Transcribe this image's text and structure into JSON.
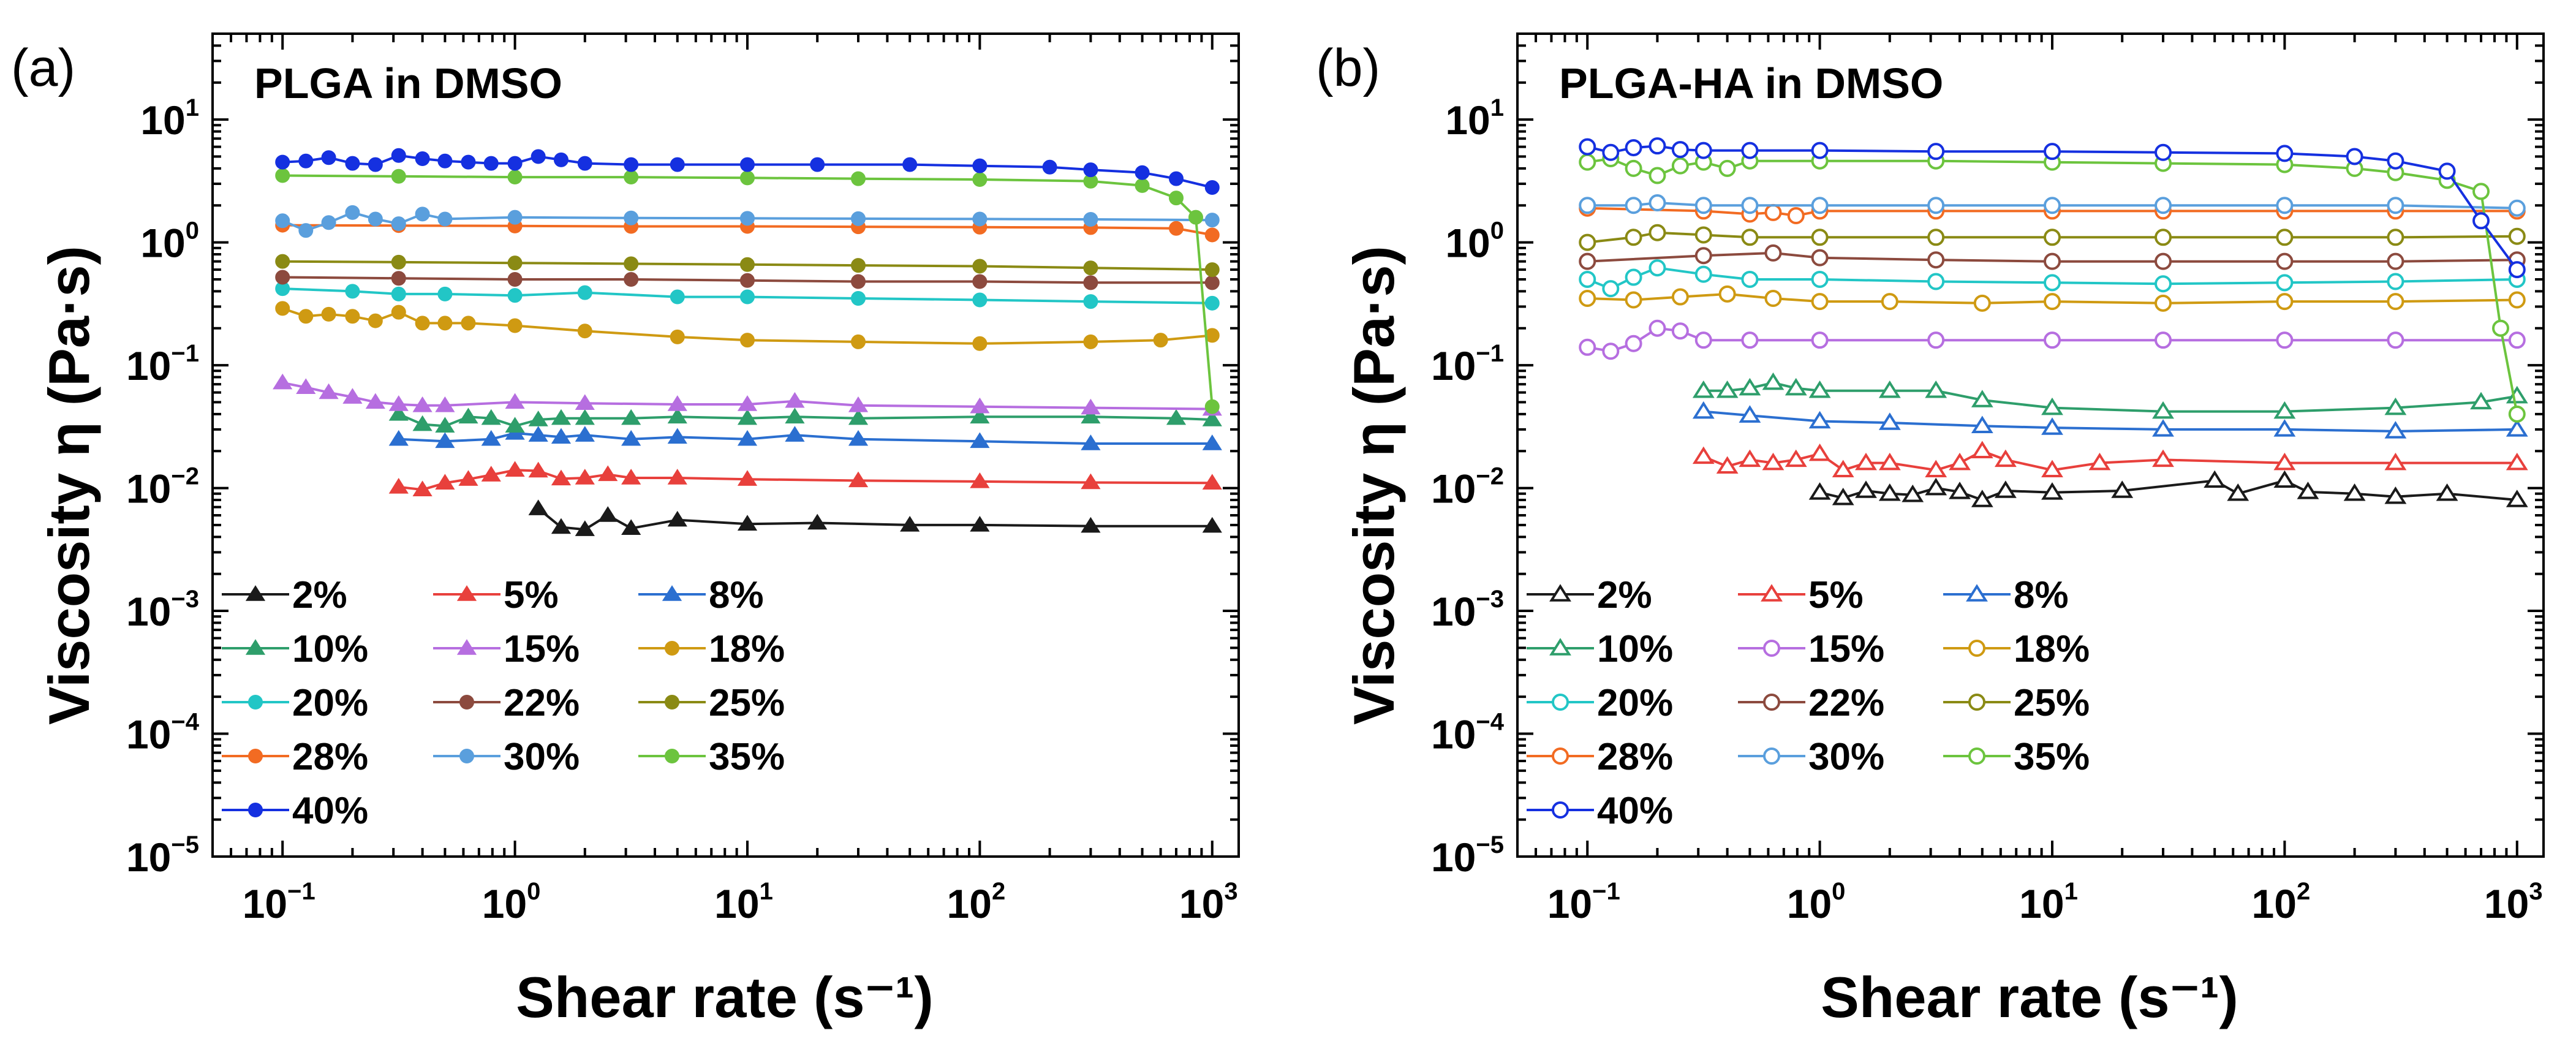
{
  "chart_data": [
    {
      "type": "line",
      "panel_letter": "(a)",
      "title": "PLGA in DMSO",
      "xlabel": "Shear rate (s⁻¹)",
      "ylabel": "Viscosity η (Pa·s)",
      "x_scale": "log",
      "y_scale": "log",
      "xlim": [
        0.05,
        1300
      ],
      "ylim": [
        1e-05,
        50
      ],
      "x_tick_exponents": [
        -1,
        0,
        1,
        2,
        3
      ],
      "y_tick_exponents": [
        -5,
        -4,
        -3,
        -2,
        -1,
        0,
        1
      ],
      "marker_style": "filled",
      "legend_position": "bottom-left",
      "series": [
        {
          "name": "2%",
          "color": "#1a1a1a",
          "marker": "triangle",
          "x": [
            1.26,
            1.58,
            2.0,
            2.51,
            3.16,
            5.0,
            10,
            20,
            50,
            100,
            300,
            1000
          ],
          "y": [
            0.0068,
            0.0048,
            0.0046,
            0.006,
            0.0047,
            0.0055,
            0.0051,
            0.0052,
            0.005,
            0.005,
            0.0049,
            0.0049
          ]
        },
        {
          "name": "5%",
          "color": "#e8403c",
          "marker": "triangle",
          "x": [
            0.316,
            0.4,
            0.5,
            0.63,
            0.79,
            1.0,
            1.26,
            1.58,
            2.0,
            2.51,
            3.16,
            5,
            10,
            30,
            100,
            300,
            1000
          ],
          "y": [
            0.0102,
            0.0097,
            0.011,
            0.0118,
            0.0128,
            0.014,
            0.0138,
            0.0119,
            0.0121,
            0.0129,
            0.0121,
            0.0121,
            0.0118,
            0.0115,
            0.0113,
            0.0111,
            0.011
          ]
        },
        {
          "name": "8%",
          "color": "#2b6fd0",
          "marker": "triangle",
          "x": [
            0.316,
            0.5,
            0.79,
            1.0,
            1.26,
            1.58,
            2.0,
            3.16,
            5,
            10,
            16,
            30,
            100,
            300,
            1000
          ],
          "y": [
            0.025,
            0.024,
            0.025,
            0.028,
            0.027,
            0.026,
            0.027,
            0.025,
            0.026,
            0.025,
            0.027,
            0.025,
            0.024,
            0.023,
            0.023
          ]
        },
        {
          "name": "10%",
          "color": "#2e9e6b",
          "marker": "triangle",
          "x": [
            0.316,
            0.4,
            0.5,
            0.63,
            0.79,
            1.0,
            1.26,
            1.58,
            2.0,
            3.16,
            5,
            10,
            16,
            30,
            100,
            300,
            700,
            1000
          ],
          "y": [
            0.04,
            0.033,
            0.032,
            0.038,
            0.037,
            0.032,
            0.036,
            0.037,
            0.037,
            0.037,
            0.038,
            0.037,
            0.038,
            0.037,
            0.038,
            0.038,
            0.037,
            0.036
          ]
        },
        {
          "name": "15%",
          "color": "#b66ee0",
          "marker": "triangle",
          "x": [
            0.1,
            0.126,
            0.158,
            0.2,
            0.251,
            0.316,
            0.4,
            0.5,
            1.0,
            2.0,
            5,
            10,
            16,
            30,
            100,
            300,
            1000
          ],
          "y": [
            0.072,
            0.066,
            0.06,
            0.055,
            0.05,
            0.048,
            0.047,
            0.047,
            0.05,
            0.049,
            0.048,
            0.048,
            0.051,
            0.047,
            0.046,
            0.045,
            0.044
          ]
        },
        {
          "name": "18%",
          "color": "#cf9a12",
          "marker": "circle",
          "x": [
            0.1,
            0.126,
            0.158,
            0.2,
            0.251,
            0.316,
            0.4,
            0.5,
            0.63,
            1.0,
            2.0,
            5,
            10,
            30,
            100,
            300,
            600,
            1000
          ],
          "y": [
            0.29,
            0.25,
            0.26,
            0.25,
            0.23,
            0.27,
            0.22,
            0.22,
            0.22,
            0.21,
            0.19,
            0.17,
            0.16,
            0.155,
            0.15,
            0.155,
            0.16,
            0.175
          ]
        },
        {
          "name": "20%",
          "color": "#22c6c6",
          "marker": "circle",
          "x": [
            0.1,
            0.2,
            0.316,
            0.5,
            1.0,
            2.0,
            5,
            10,
            30,
            100,
            300,
            1000
          ],
          "y": [
            0.42,
            0.4,
            0.38,
            0.38,
            0.37,
            0.39,
            0.36,
            0.36,
            0.35,
            0.34,
            0.33,
            0.32
          ]
        },
        {
          "name": "22%",
          "color": "#8c4a3e",
          "marker": "circle",
          "x": [
            0.1,
            0.316,
            1.0,
            3.16,
            10,
            30,
            100,
            300,
            1000
          ],
          "y": [
            0.52,
            0.51,
            0.5,
            0.5,
            0.49,
            0.48,
            0.48,
            0.47,
            0.47
          ]
        },
        {
          "name": "25%",
          "color": "#8a8a14",
          "marker": "circle",
          "x": [
            0.1,
            0.316,
            1.0,
            3.16,
            10,
            30,
            100,
            300,
            1000
          ],
          "y": [
            0.7,
            0.69,
            0.68,
            0.67,
            0.66,
            0.65,
            0.64,
            0.62,
            0.6
          ]
        },
        {
          "name": "28%",
          "color": "#f26b22",
          "marker": "circle",
          "x": [
            0.1,
            0.316,
            1.0,
            3.16,
            10,
            30,
            100,
            300,
            700,
            1000
          ],
          "y": [
            1.38,
            1.37,
            1.36,
            1.35,
            1.35,
            1.34,
            1.33,
            1.32,
            1.3,
            1.15
          ]
        },
        {
          "name": "30%",
          "color": "#5a9fdd",
          "marker": "circle",
          "x": [
            0.1,
            0.126,
            0.158,
            0.2,
            0.251,
            0.316,
            0.4,
            0.5,
            1.0,
            3.16,
            10,
            30,
            100,
            300,
            1000
          ],
          "y": [
            1.5,
            1.25,
            1.45,
            1.75,
            1.55,
            1.42,
            1.7,
            1.55,
            1.6,
            1.58,
            1.57,
            1.56,
            1.55,
            1.54,
            1.52
          ]
        },
        {
          "name": "35%",
          "color": "#6cc43e",
          "marker": "circle",
          "x": [
            0.1,
            0.316,
            1.0,
            3.16,
            10,
            30,
            100,
            300,
            500,
            700,
            850,
            1000
          ],
          "y": [
            3.5,
            3.45,
            3.4,
            3.4,
            3.35,
            3.3,
            3.25,
            3.15,
            2.9,
            2.3,
            1.6,
            0.046
          ]
        },
        {
          "name": "40%",
          "color": "#1530e0",
          "marker": "circle",
          "x": [
            0.1,
            0.126,
            0.158,
            0.2,
            0.251,
            0.316,
            0.4,
            0.5,
            0.63,
            0.79,
            1.0,
            1.26,
            1.58,
            2.0,
            3.16,
            5,
            10,
            20,
            50,
            100,
            200,
            300,
            500,
            700,
            1000
          ],
          "y": [
            4.5,
            4.6,
            4.9,
            4.4,
            4.3,
            5.1,
            4.8,
            4.6,
            4.5,
            4.4,
            4.4,
            5.0,
            4.7,
            4.4,
            4.3,
            4.3,
            4.3,
            4.3,
            4.3,
            4.2,
            4.1,
            3.9,
            3.7,
            3.3,
            2.8
          ]
        }
      ]
    },
    {
      "type": "line",
      "panel_letter": "(b)",
      "title": "PLGA-HA in DMSO",
      "xlabel": "Shear rate (s⁻¹)",
      "ylabel": "Viscosity η (Pa·s)",
      "x_scale": "log",
      "y_scale": "log",
      "xlim": [
        0.05,
        1300
      ],
      "ylim": [
        1e-05,
        50
      ],
      "x_tick_exponents": [
        -1,
        0,
        1,
        2,
        3
      ],
      "y_tick_exponents": [
        -5,
        -4,
        -3,
        -2,
        -1,
        0,
        1
      ],
      "marker_style": "open",
      "legend_position": "bottom-left",
      "series": [
        {
          "name": "2%",
          "color": "#1a1a1a",
          "marker": "triangle",
          "x": [
            1.0,
            1.26,
            1.58,
            2.0,
            2.51,
            3.16,
            4.0,
            5.0,
            6.3,
            10,
            20,
            50,
            63,
            100,
            126,
            200,
            300,
            500,
            1000
          ],
          "y": [
            0.0092,
            0.0083,
            0.0095,
            0.009,
            0.0088,
            0.01,
            0.0093,
            0.008,
            0.0095,
            0.0092,
            0.0095,
            0.0115,
            0.009,
            0.0115,
            0.0093,
            0.009,
            0.0085,
            0.009,
            0.008
          ]
        },
        {
          "name": "5%",
          "color": "#e8403c",
          "marker": "triangle",
          "x": [
            0.316,
            0.4,
            0.5,
            0.63,
            0.79,
            1.0,
            1.26,
            1.58,
            2.0,
            3.16,
            4.0,
            5.0,
            6.3,
            10,
            16,
            30,
            100,
            300,
            1000
          ],
          "y": [
            0.018,
            0.015,
            0.017,
            0.016,
            0.017,
            0.019,
            0.014,
            0.016,
            0.016,
            0.014,
            0.016,
            0.02,
            0.017,
            0.014,
            0.016,
            0.017,
            0.016,
            0.016,
            0.016
          ]
        },
        {
          "name": "8%",
          "color": "#2b6fd0",
          "marker": "triangle",
          "x": [
            0.316,
            0.5,
            1.0,
            2.0,
            5,
            10,
            30,
            100,
            300,
            1000
          ],
          "y": [
            0.042,
            0.039,
            0.035,
            0.034,
            0.032,
            0.031,
            0.03,
            0.03,
            0.029,
            0.03
          ]
        },
        {
          "name": "10%",
          "color": "#2e9e6b",
          "marker": "triangle",
          "x": [
            0.316,
            0.4,
            0.5,
            0.63,
            0.79,
            1.0,
            2.0,
            3.16,
            5,
            10,
            30,
            100,
            300,
            700,
            1000
          ],
          "y": [
            0.062,
            0.062,
            0.065,
            0.072,
            0.065,
            0.062,
            0.062,
            0.062,
            0.052,
            0.045,
            0.042,
            0.042,
            0.045,
            0.05,
            0.056
          ]
        },
        {
          "name": "15%",
          "color": "#b66ee0",
          "marker": "circle",
          "x": [
            0.1,
            0.126,
            0.158,
            0.2,
            0.251,
            0.316,
            0.5,
            1.0,
            3.16,
            10,
            30,
            100,
            300,
            1000
          ],
          "y": [
            0.14,
            0.13,
            0.15,
            0.2,
            0.19,
            0.16,
            0.16,
            0.16,
            0.16,
            0.16,
            0.16,
            0.16,
            0.16,
            0.16
          ]
        },
        {
          "name": "18%",
          "color": "#cf9a12",
          "marker": "circle",
          "x": [
            0.1,
            0.158,
            0.251,
            0.4,
            0.63,
            1.0,
            2.0,
            5,
            10,
            30,
            100,
            300,
            1000
          ],
          "y": [
            0.35,
            0.34,
            0.36,
            0.38,
            0.35,
            0.33,
            0.33,
            0.32,
            0.33,
            0.32,
            0.33,
            0.33,
            0.34
          ]
        },
        {
          "name": "20%",
          "color": "#22c6c6",
          "marker": "circle",
          "x": [
            0.1,
            0.126,
            0.158,
            0.2,
            0.316,
            0.5,
            1.0,
            3.16,
            10,
            30,
            100,
            300,
            1000
          ],
          "y": [
            0.5,
            0.42,
            0.52,
            0.62,
            0.55,
            0.5,
            0.5,
            0.48,
            0.47,
            0.46,
            0.47,
            0.48,
            0.5
          ]
        },
        {
          "name": "22%",
          "color": "#8c4a3e",
          "marker": "circle",
          "x": [
            0.1,
            0.316,
            0.63,
            1.0,
            3.16,
            10,
            30,
            100,
            300,
            1000
          ],
          "y": [
            0.7,
            0.78,
            0.82,
            0.75,
            0.72,
            0.7,
            0.7,
            0.7,
            0.7,
            0.72
          ]
        },
        {
          "name": "25%",
          "color": "#8a8a14",
          "marker": "circle",
          "x": [
            0.1,
            0.158,
            0.2,
            0.316,
            0.5,
            1.0,
            3.16,
            10,
            30,
            100,
            300,
            1000
          ],
          "y": [
            1.0,
            1.1,
            1.2,
            1.15,
            1.1,
            1.1,
            1.1,
            1.1,
            1.1,
            1.1,
            1.1,
            1.12
          ]
        },
        {
          "name": "28%",
          "color": "#f26b22",
          "marker": "circle",
          "x": [
            0.1,
            0.316,
            0.5,
            0.63,
            0.79,
            1.0,
            3.16,
            10,
            30,
            100,
            300,
            1000
          ],
          "y": [
            1.9,
            1.8,
            1.7,
            1.75,
            1.65,
            1.8,
            1.8,
            1.8,
            1.8,
            1.8,
            1.8,
            1.8
          ]
        },
        {
          "name": "30%",
          "color": "#5a9fdd",
          "marker": "circle",
          "x": [
            0.1,
            0.158,
            0.2,
            0.316,
            0.5,
            1.0,
            3.16,
            10,
            30,
            100,
            300,
            1000
          ],
          "y": [
            2.0,
            2.0,
            2.1,
            2.0,
            2.0,
            2.0,
            2.0,
            2.0,
            2.0,
            2.0,
            2.0,
            1.9
          ]
        },
        {
          "name": "35%",
          "color": "#6cc43e",
          "marker": "circle",
          "x": [
            0.1,
            0.126,
            0.158,
            0.2,
            0.251,
            0.316,
            0.4,
            0.5,
            1.0,
            3.16,
            10,
            30,
            100,
            200,
            300,
            500,
            700,
            850,
            1000
          ],
          "y": [
            4.5,
            4.8,
            4.0,
            3.5,
            4.2,
            4.5,
            4.0,
            4.6,
            4.6,
            4.6,
            4.5,
            4.4,
            4.3,
            4.0,
            3.7,
            3.2,
            2.6,
            0.2,
            0.04
          ]
        },
        {
          "name": "40%",
          "color": "#1530e0",
          "marker": "circle",
          "x": [
            0.1,
            0.126,
            0.158,
            0.2,
            0.251,
            0.316,
            0.5,
            1.0,
            3.16,
            10,
            30,
            100,
            200,
            300,
            500,
            700,
            1000
          ],
          "y": [
            6.0,
            5.4,
            5.9,
            6.1,
            5.7,
            5.6,
            5.6,
            5.6,
            5.5,
            5.5,
            5.4,
            5.3,
            5.0,
            4.6,
            3.8,
            1.5,
            0.6
          ]
        }
      ]
    }
  ]
}
